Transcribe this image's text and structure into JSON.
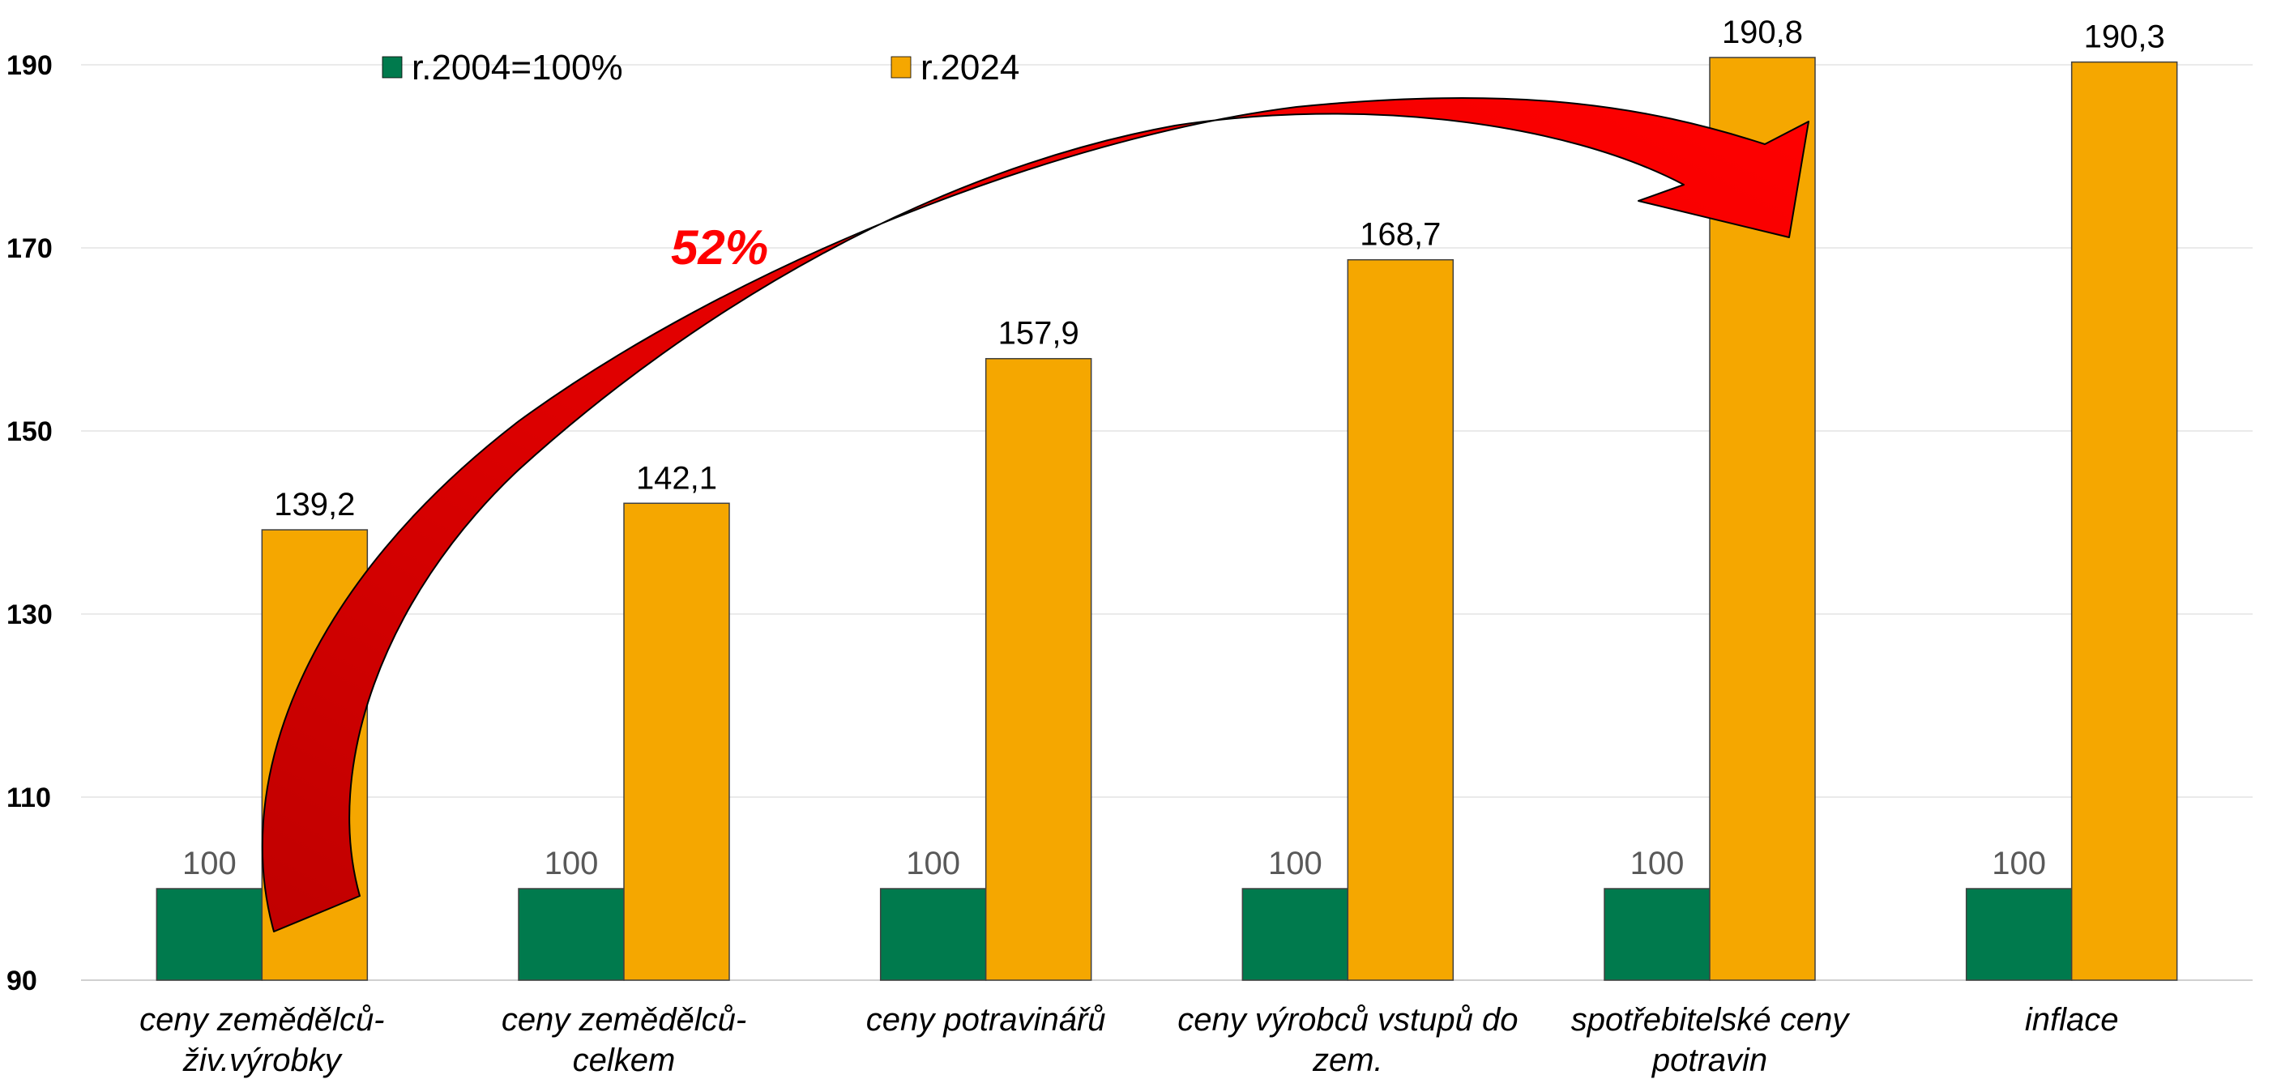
{
  "chart_data": {
    "type": "bar",
    "categories": [
      [
        "ceny zemědělců-",
        "živ.výrobky"
      ],
      [
        "ceny zemědělců-",
        "celkem"
      ],
      [
        "ceny potravinářů"
      ],
      [
        "ceny výrobců vstupů do",
        "zem."
      ],
      [
        "spotřebitelské ceny",
        "potravin"
      ],
      [
        "inflace"
      ]
    ],
    "series": [
      {
        "name": "r.2004=100%",
        "color": "#007A4D",
        "label_color": "#595959",
        "values": [
          100,
          100,
          100,
          100,
          100,
          100
        ],
        "labels": [
          "100",
          "100",
          "100",
          "100",
          "100",
          "100"
        ]
      },
      {
        "name": "r.2024",
        "color": "#F5A700",
        "label_color": "#000000",
        "values": [
          139.2,
          142.1,
          157.9,
          168.7,
          190.8,
          190.3
        ],
        "labels": [
          "139,2",
          "142,1",
          "157,9",
          "168,7",
          "190,8",
          "190,3"
        ]
      }
    ],
    "ylim": [
      90,
      190
    ],
    "yticks": [
      90,
      110,
      130,
      150,
      170,
      190
    ],
    "grid": true,
    "legend": "top",
    "annotation": {
      "text": "52%",
      "color": "#FF0000",
      "arrow_color": "#FF0000",
      "arrow_from": "ceny zemědělců-živ.výrobky",
      "arrow_to": "spotřebitelské ceny potravin"
    }
  }
}
